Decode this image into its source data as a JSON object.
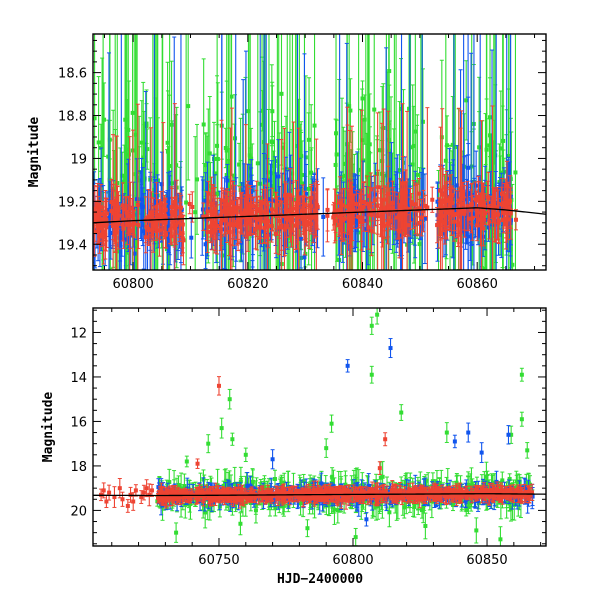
{
  "chart_data": [
    {
      "type": "scatter",
      "panel": "top",
      "title": "",
      "xlabel": "",
      "ylabel": "Magnitude",
      "xlim": [
        60793,
        60872
      ],
      "ylim": [
        19.52,
        18.42
      ],
      "y_inverted": true,
      "xticks": [
        60800,
        60820,
        60840,
        60860
      ],
      "yticks": [
        18.6,
        18.8,
        19,
        19.2,
        19.4
      ],
      "ytick_labels": [
        "18.6",
        "18.8",
        "19",
        "19.2",
        "19.4"
      ],
      "grid": false,
      "legend": "none",
      "series_colors": {
        "green": "#33dd33",
        "blue": "#1155ee",
        "red": "#ee4433",
        "model": "#000000"
      },
      "model_curve": {
        "x": [
          60793,
          60800,
          60810,
          60820,
          60830,
          60840,
          60850,
          60860,
          60865,
          60872
        ],
        "y": [
          19.3,
          19.29,
          19.28,
          19.27,
          19.26,
          19.25,
          19.24,
          19.23,
          19.24,
          19.26
        ]
      },
      "observed_range": [
        60793,
        60867
      ],
      "dense_clusters": [
        [
          60793,
          60809
        ],
        [
          60812,
          60832
        ],
        [
          60835,
          60851
        ],
        [
          60853,
          60866
        ]
      ],
      "note_density": 900
    },
    {
      "type": "scatter",
      "panel": "bottom",
      "title": "",
      "xlabel": "HJD−2400000",
      "ylabel": "Magnitude",
      "xlim": [
        60703,
        60872
      ],
      "ylim": [
        21.6,
        10.9
      ],
      "y_inverted": true,
      "xticks": [
        60750,
        60800,
        60850
      ],
      "yticks": [
        12,
        14,
        16,
        18,
        20
      ],
      "grid": false,
      "legend": "none",
      "series_colors": {
        "green": "#33dd33",
        "blue": "#1155ee",
        "red": "#ee4433",
        "model": "#000000"
      },
      "model_curve": {
        "x": [
          60703,
          60727,
          60750,
          60800,
          60850,
          60872
        ],
        "y": [
          19.32,
          19.33,
          19.32,
          19.28,
          19.25,
          19.27
        ]
      },
      "red_early": [
        [
          60706,
          19.3
        ],
        [
          60707,
          19.1
        ],
        [
          60708,
          19.6
        ],
        [
          60709,
          19.2
        ],
        [
          60711,
          19.4
        ],
        [
          60713,
          19.0
        ],
        [
          60714,
          19.5
        ],
        [
          60716,
          19.8
        ],
        [
          60717,
          19.3
        ],
        [
          60718,
          19.6
        ],
        [
          60719,
          19.1
        ],
        [
          60721,
          19.4
        ],
        [
          60722,
          19.2
        ],
        [
          60723,
          19.0
        ],
        [
          60724,
          19.3
        ],
        [
          60725,
          19.1
        ]
      ],
      "bright_outliers": [
        {
          "c": "green",
          "x": 60809,
          "y": 11.2
        },
        {
          "c": "green",
          "x": 60807,
          "y": 11.7
        },
        {
          "c": "green",
          "x": 60807,
          "y": 13.9
        },
        {
          "c": "blue",
          "x": 60814,
          "y": 12.7
        },
        {
          "c": "blue",
          "x": 60798,
          "y": 13.5
        },
        {
          "c": "red",
          "x": 60750,
          "y": 14.4
        },
        {
          "c": "green",
          "x": 60754,
          "y": 15.0
        },
        {
          "c": "green",
          "x": 60751,
          "y": 16.3
        },
        {
          "c": "green",
          "x": 60755,
          "y": 16.8
        },
        {
          "c": "green",
          "x": 60746,
          "y": 17.0
        },
        {
          "c": "green",
          "x": 60818,
          "y": 15.6
        },
        {
          "c": "green",
          "x": 60792,
          "y": 16.1
        },
        {
          "c": "green",
          "x": 60790,
          "y": 17.2
        },
        {
          "c": "green",
          "x": 60835,
          "y": 16.5
        },
        {
          "c": "blue",
          "x": 60838,
          "y": 16.9
        },
        {
          "c": "blue",
          "x": 60843,
          "y": 16.5
        },
        {
          "c": "blue",
          "x": 60848,
          "y": 17.4
        },
        {
          "c": "green",
          "x": 60859,
          "y": 16.6
        },
        {
          "c": "blue",
          "x": 60858,
          "y": 16.6
        },
        {
          "c": "green",
          "x": 60863,
          "y": 13.9
        },
        {
          "c": "green",
          "x": 60863,
          "y": 15.9
        },
        {
          "c": "green",
          "x": 60865,
          "y": 17.3
        },
        {
          "c": "red",
          "x": 60812,
          "y": 16.8
        },
        {
          "c": "red",
          "x": 60810,
          "y": 18.1
        },
        {
          "c": "blue",
          "x": 60770,
          "y": 17.7
        },
        {
          "c": "green",
          "x": 60738,
          "y": 17.8
        },
        {
          "c": "red",
          "x": 60742,
          "y": 17.9
        },
        {
          "c": "green",
          "x": 60760,
          "y": 17.5
        }
      ],
      "faint_outliers": [
        {
          "c": "green",
          "x": 60734,
          "y": 21.0
        },
        {
          "c": "green",
          "x": 60801,
          "y": 21.2
        },
        {
          "c": "green",
          "x": 60855,
          "y": 21.3
        },
        {
          "c": "green",
          "x": 60783,
          "y": 20.8
        },
        {
          "c": "green",
          "x": 60758,
          "y": 20.6
        },
        {
          "c": "green",
          "x": 60827,
          "y": 20.7
        },
        {
          "c": "green",
          "x": 60846,
          "y": 20.9
        },
        {
          "c": "blue",
          "x": 60805,
          "y": 20.4
        }
      ],
      "note_density": 1400
    }
  ]
}
